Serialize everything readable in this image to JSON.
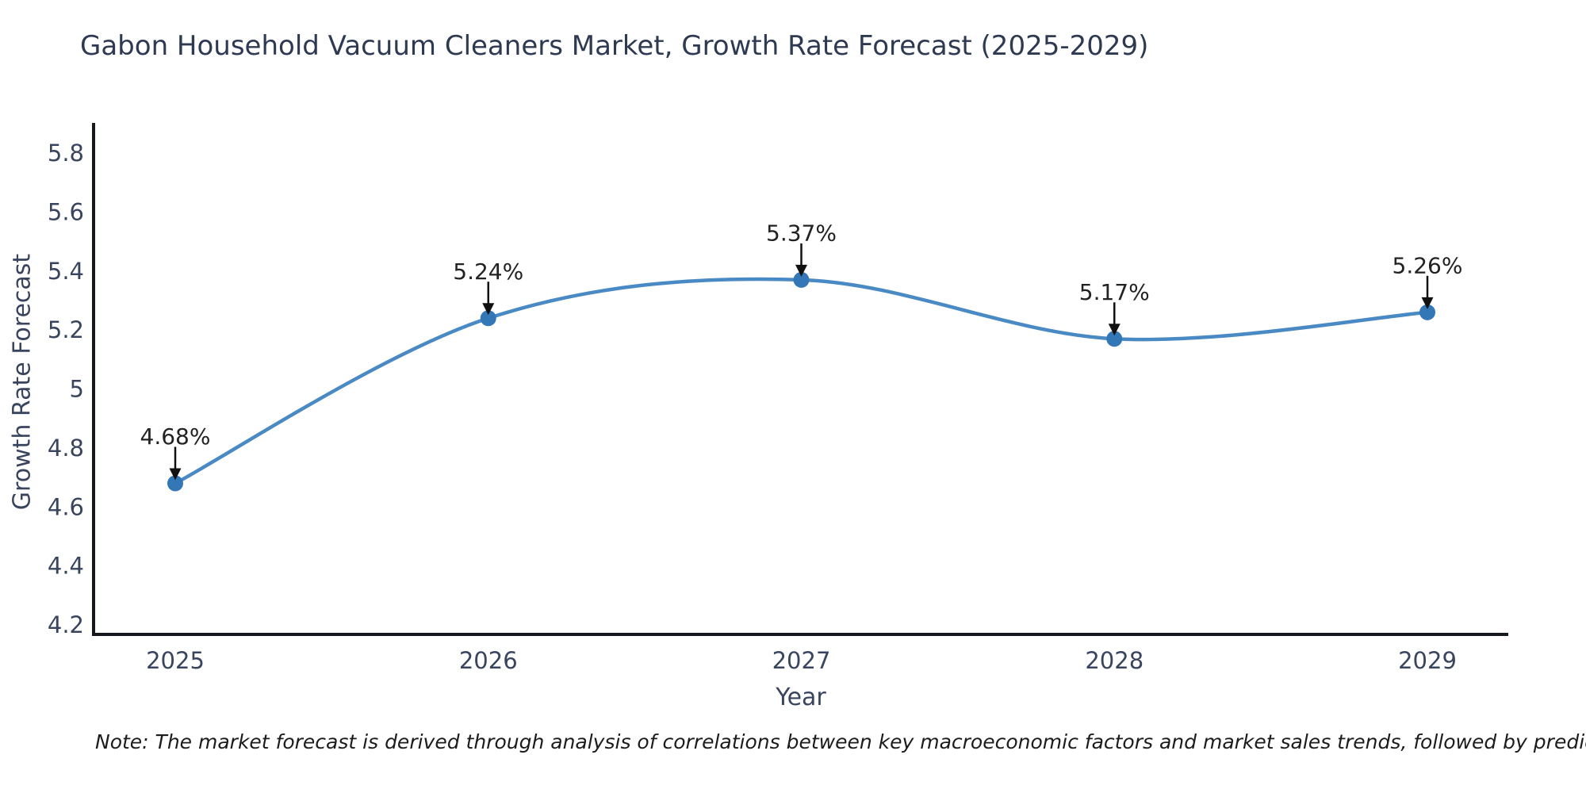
{
  "title": "Gabon Household Vacuum Cleaners Market, Growth Rate Forecast (2025-2029)",
  "note": "Note: The market forecast is derived through analysis of correlations between key macroeconomic factors and market sales trends, followed by predictive modeling to project future sales",
  "chart_data": {
    "type": "line",
    "title": "Gabon Household Vacuum Cleaners Market, Growth Rate Forecast (2025-2029)",
    "xlabel": "Year",
    "ylabel": "Growth Rate Forecast",
    "x": [
      "2025",
      "2026",
      "2027",
      "2028",
      "2029"
    ],
    "series": [
      {
        "name": "Growth Rate Forecast",
        "values": [
          4.68,
          5.24,
          5.37,
          5.17,
          5.26
        ]
      }
    ],
    "point_labels": [
      "4.68%",
      "5.24%",
      "5.37%",
      "5.17%",
      "5.26%"
    ],
    "ytick_labels": [
      "4.2",
      "4.4",
      "4.6",
      "4.8",
      "5",
      "5.2",
      "5.4",
      "5.6",
      "5.8"
    ],
    "ytick_values": [
      4.2,
      4.4,
      4.6,
      4.8,
      5.0,
      5.2,
      5.4,
      5.6,
      5.8
    ],
    "ylim": [
      4.17,
      5.93
    ],
    "grid": false,
    "legend_position": "none",
    "marker_style": "circle",
    "annotation_arrow": "down-arrow",
    "colors": {
      "line": "#4a8ac4",
      "marker": "#3377b6",
      "axis": "#15181d",
      "tick_text": "#39455e",
      "title_text": "#2e3a52",
      "point_label_text": "#222222",
      "note_text": "#1c1c1c",
      "background": "#ffffff"
    }
  }
}
